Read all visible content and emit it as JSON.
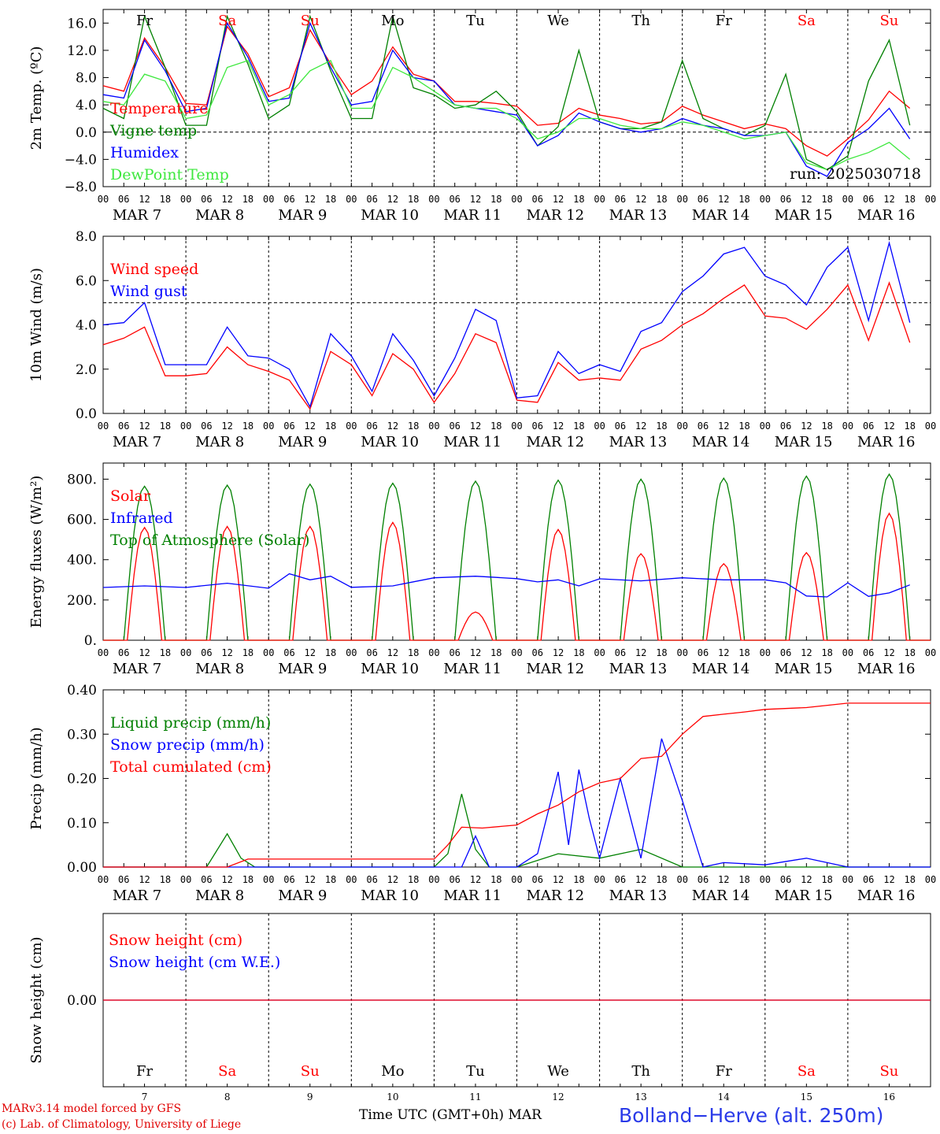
{
  "chart_data": [
    {
      "type": "line",
      "ylabel": "2m Temp. (ºC)",
      "ylim": [
        -8,
        18
      ],
      "yticks": [
        "16.0",
        "12.0",
        "8.0",
        "4.0",
        "0.0",
        "−4.0",
        "−8.0"
      ],
      "ytick_values": [
        16,
        12,
        8,
        4,
        0,
        -4,
        -8
      ],
      "zero_line": 0,
      "annotation": "run: 2025030718",
      "legend_placement": "left",
      "x_hours": [
        0,
        6,
        12,
        18,
        24,
        30,
        36,
        42,
        48,
        54,
        60,
        66,
        72,
        78,
        84,
        90,
        96,
        102,
        108,
        114,
        120,
        126,
        132,
        138,
        144,
        150,
        156,
        162,
        168,
        174,
        180,
        186,
        192,
        198,
        204,
        210,
        216,
        222,
        228,
        234
      ],
      "series": [
        {
          "name": "Temperature",
          "color": "#ff0000",
          "values": [
            6.8,
            6.0,
            13.8,
            9.5,
            4.2,
            4.0,
            15.5,
            11.5,
            5.2,
            6.5,
            15.0,
            10.0,
            5.5,
            7.5,
            12.5,
            8.5,
            7.5,
            4.5,
            4.5,
            4.2,
            3.8,
            1.0,
            1.3,
            3.5,
            2.5,
            2.0,
            1.2,
            1.5,
            3.8,
            2.5,
            1.5,
            0.5,
            1.2,
            0.5,
            -2.0,
            -3.5,
            -1.0,
            1.8,
            6.0,
            3.5
          ]
        },
        {
          "name": "Vigne temp",
          "color": "#008000",
          "values": [
            3.5,
            2.0,
            17.0,
            9.5,
            1.0,
            1.0,
            17.0,
            10.0,
            2.0,
            4.0,
            17.0,
            9.0,
            2.0,
            2.0,
            17.0,
            6.5,
            5.5,
            3.5,
            4.0,
            6.0,
            3.0,
            -2.0,
            0.8,
            12.0,
            1.5,
            0.5,
            0.5,
            1.5,
            10.5,
            2.0,
            0.5,
            -0.5,
            1.0,
            8.5,
            -4.0,
            -5.5,
            -3.5,
            7.5,
            13.5,
            1.0
          ]
        },
        {
          "name": "Humidex",
          "color": "#0000ff",
          "values": [
            5.5,
            5.0,
            13.5,
            9.0,
            3.0,
            3.5,
            16.0,
            11.0,
            4.5,
            5.0,
            16.0,
            9.5,
            4.0,
            4.5,
            12.0,
            8.0,
            7.5,
            4.0,
            3.5,
            3.0,
            2.5,
            -2.0,
            -0.5,
            2.8,
            1.5,
            0.5,
            0.0,
            0.5,
            2.0,
            1.0,
            0.5,
            -0.5,
            -0.5,
            0.0,
            -5.0,
            -6.5,
            -1.5,
            0.5,
            3.5,
            -1.0
          ]
        },
        {
          "name": "DewPoint Temp",
          "color": "#3ee83e",
          "values": [
            4.5,
            4.0,
            8.5,
            7.5,
            2.0,
            2.5,
            9.5,
            10.5,
            4.0,
            5.5,
            9.0,
            10.5,
            3.5,
            3.5,
            9.5,
            8.0,
            6.0,
            4.0,
            3.5,
            3.5,
            2.0,
            -1.0,
            0.0,
            2.0,
            2.0,
            1.0,
            0.5,
            0.5,
            1.5,
            1.0,
            0.0,
            -1.0,
            -0.5,
            0.0,
            -4.5,
            -5.5,
            -4.0,
            -3.0,
            -1.5,
            -4.0
          ]
        }
      ]
    },
    {
      "type": "line",
      "ylabel": "10m Wind (m/s)",
      "ylim": [
        0,
        8
      ],
      "yticks": [
        "8.0",
        "6.0",
        "4.0",
        "2.0",
        "0.0"
      ],
      "ytick_values": [
        8,
        6,
        4,
        2,
        0
      ],
      "ref_line": 5,
      "legend_placement": "left",
      "x_hours": [
        0,
        6,
        12,
        18,
        24,
        30,
        36,
        42,
        48,
        54,
        60,
        66,
        72,
        78,
        84,
        90,
        96,
        102,
        108,
        114,
        120,
        126,
        132,
        138,
        144,
        150,
        156,
        162,
        168,
        174,
        180,
        186,
        192,
        198,
        204,
        210,
        216,
        222,
        228,
        234
      ],
      "series": [
        {
          "name": "Wind speed",
          "color": "#ff0000",
          "values": [
            3.1,
            3.4,
            3.9,
            1.7,
            1.7,
            1.8,
            3.0,
            2.2,
            1.9,
            1.5,
            0.2,
            2.8,
            2.2,
            0.8,
            2.7,
            2.0,
            0.5,
            1.8,
            3.6,
            3.2,
            0.6,
            0.5,
            2.3,
            1.5,
            1.6,
            1.5,
            2.9,
            3.3,
            4.0,
            4.5,
            5.2,
            5.8,
            4.4,
            4.3,
            3.8,
            4.7,
            5.8,
            3.3,
            5.9,
            3.2
          ]
        },
        {
          "name": "Wind gust",
          "color": "#0000ff",
          "values": [
            4.0,
            4.1,
            5.0,
            2.2,
            2.2,
            2.2,
            3.9,
            2.6,
            2.5,
            2.0,
            0.3,
            3.6,
            2.6,
            1.0,
            3.6,
            2.4,
            0.8,
            2.5,
            4.7,
            4.2,
            0.7,
            0.8,
            2.8,
            1.8,
            2.2,
            1.9,
            3.7,
            4.1,
            5.5,
            6.2,
            7.2,
            7.5,
            6.2,
            5.8,
            4.9,
            6.6,
            7.5,
            4.2,
            7.7,
            4.1
          ]
        }
      ]
    },
    {
      "type": "line",
      "ylabel": "Energy fluxes (W/m²)",
      "ylim": [
        0,
        880
      ],
      "yticks": [
        "800.",
        "600.",
        "400.",
        "200.",
        "0."
      ],
      "ytick_values": [
        800,
        600,
        400,
        200,
        0
      ],
      "legend_placement": "left",
      "series": [
        {
          "name": "Solar",
          "color": "#ff0000",
          "daily_peaks": [
            560,
            565,
            565,
            585,
            140,
            550,
            430,
            380,
            435,
            630
          ]
        },
        {
          "name": "Infrared",
          "color": "#0000ff",
          "x_hours": [
            0,
            12,
            24,
            36,
            48,
            54,
            60,
            66,
            72,
            84,
            96,
            108,
            114,
            120,
            126,
            132,
            138,
            144,
            156,
            168,
            180,
            192,
            198,
            204,
            210,
            216,
            222,
            228,
            234
          ],
          "values": [
            262,
            270,
            262,
            283,
            258,
            330,
            300,
            318,
            263,
            270,
            310,
            318,
            312,
            306,
            290,
            300,
            270,
            305,
            295,
            310,
            300,
            300,
            285,
            220,
            215,
            285,
            218,
            235,
            275
          ]
        },
        {
          "name": "Top of Atmosphere (Solar)",
          "color": "#008000",
          "daily_peaks": [
            765,
            770,
            775,
            780,
            790,
            795,
            800,
            805,
            815,
            825
          ]
        }
      ]
    },
    {
      "type": "line",
      "ylabel": "Precip (mm/h)",
      "ylim": [
        0,
        0.4
      ],
      "yticks": [
        "0.40",
        "0.30",
        "0.20",
        "0.10",
        "0.00"
      ],
      "ytick_values": [
        0.4,
        0.3,
        0.2,
        0.1,
        0.0
      ],
      "legend_placement": "left",
      "series": [
        {
          "name": "Liquid precip (mm/h)",
          "color": "#008000",
          "x_hours": [
            0,
            30,
            36,
            40,
            44,
            48,
            96,
            100,
            104,
            108,
            112,
            116,
            120,
            132,
            144,
            156,
            168,
            240
          ],
          "values": [
            0,
            0,
            0.075,
            0.02,
            0,
            0,
            0,
            0.03,
            0.165,
            0.04,
            0.0,
            0.0,
            0,
            0.03,
            0.02,
            0.04,
            0,
            0
          ]
        },
        {
          "name": "Snow precip (mm/h)",
          "color": "#0000ff",
          "x_hours": [
            0,
            104,
            108,
            112,
            116,
            120,
            126,
            132,
            135,
            138,
            141,
            144,
            150,
            156,
            162,
            168,
            174,
            180,
            192,
            204,
            216,
            222,
            240
          ],
          "values": [
            0,
            0,
            0.07,
            0.0,
            0.0,
            0.0,
            0.03,
            0.215,
            0.05,
            0.22,
            0.11,
            0.02,
            0.2,
            0.02,
            0.29,
            0.15,
            0.0,
            0.01,
            0.005,
            0.02,
            0.0,
            0.0,
            0
          ]
        },
        {
          "name": "Total cumulated (cm)",
          "color": "#ff0000",
          "x_hours": [
            0,
            36,
            42,
            48,
            96,
            100,
            104,
            110,
            120,
            126,
            132,
            138,
            144,
            150,
            156,
            162,
            168,
            174,
            180,
            186,
            192,
            204,
            216,
            228,
            240
          ],
          "values": [
            0,
            0,
            0.018,
            0.018,
            0.018,
            0.05,
            0.09,
            0.088,
            0.095,
            0.12,
            0.14,
            0.17,
            0.19,
            0.2,
            0.245,
            0.25,
            0.3,
            0.34,
            0.345,
            0.35,
            0.356,
            0.36,
            0.37,
            0.37,
            0.37
          ]
        }
      ]
    },
    {
      "type": "line",
      "ylabel": "Snow height (cm)",
      "yticks": [
        "0.00"
      ],
      "legend_placement": "left",
      "series": [
        {
          "name": "Snow height (cm)",
          "color": "#ff0000",
          "values": [
            0,
            0
          ]
        },
        {
          "name": "Snow height (cm W.E.)",
          "color": "#0000ff",
          "values": [
            0,
            0
          ]
        }
      ]
    }
  ],
  "hour_ticks": [
    "00",
    "06",
    "12",
    "18"
  ],
  "day_labels": [
    "MAR  7",
    "MAR  8",
    "MAR  9",
    "MAR 10",
    "MAR 11",
    "MAR 12",
    "MAR 13",
    "MAR 14",
    "MAR 15",
    "MAR 16"
  ],
  "weekdays": [
    {
      "label": "Fr",
      "color": "#000000"
    },
    {
      "label": "Sa",
      "color": "#ff0000"
    },
    {
      "label": "Su",
      "color": "#ff0000"
    },
    {
      "label": "Mo",
      "color": "#000000"
    },
    {
      "label": "Tu",
      "color": "#000000"
    },
    {
      "label": "We",
      "color": "#000000"
    },
    {
      "label": "Th",
      "color": "#000000"
    },
    {
      "label": "Fr",
      "color": "#000000"
    },
    {
      "label": "Sa",
      "color": "#ff0000"
    },
    {
      "label": "Su",
      "color": "#ff0000"
    }
  ],
  "day_numbers": [
    "7",
    "8",
    "9",
    "10",
    "11",
    "12",
    "13",
    "14",
    "15",
    "16"
  ],
  "footer": {
    "credit_line1": "MARv3.14 model forced by GFS",
    "credit_line2": "(c) Lab. of Climatology, University of Liege",
    "xaxis_label": "Time UTC (GMT+0h) MAR",
    "station": "Bolland−Herve (alt. 250m)"
  }
}
